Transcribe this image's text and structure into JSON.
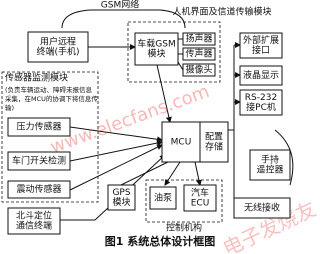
{
  "header": {
    "network": "GSM网络",
    "module_title": "人机界面及信道传输模块"
  },
  "nodes": [
    {
      "lines": [
        "用户远程",
        "终端(手机)"
      ]
    },
    {
      "lines": [
        "车载GSM",
        "模块"
      ]
    },
    {
      "lines": [
        "扬声器"
      ]
    },
    {
      "lines": [
        "传声器"
      ]
    },
    {
      "lines": [
        "摄像头"
      ]
    },
    {
      "lines": [
        "外部扩展",
        "接口"
      ]
    },
    {
      "lines": [
        "液晶显示"
      ]
    },
    {
      "lines": [
        "RS-232",
        "接PC机"
      ]
    },
    {
      "lines": [
        "压力传感器"
      ]
    },
    {
      "lines": [
        "车门开关检测"
      ]
    },
    {
      "lines": [
        "震动传感器"
      ]
    },
    {
      "lines": [
        "MCU"
      ]
    },
    {
      "lines": [
        "配置",
        "存储"
      ]
    },
    {
      "lines": [
        "手持",
        "遥控器"
      ]
    },
    {
      "lines": [
        "无线接收"
      ]
    },
    {
      "lines": [
        "北斗定位",
        "通信终端"
      ]
    },
    {
      "lines": [
        "GPS",
        "模块"
      ]
    },
    {
      "lines": [
        "油泵"
      ]
    },
    {
      "lines": [
        "汽车",
        "ECU"
      ]
    }
  ],
  "sensor_module": {
    "title": "传感器监测模块",
    "description": [
      "(负责车辆运动、障碍未报信息",
      "采集，在MCU的协调下将信息传",
      "输)"
    ]
  },
  "control_label": "控制机构",
  "watermark": [
    "www.elecfans.com",
    "电子发烧友"
  ],
  "caption": "图1   系统总体设计框图"
}
